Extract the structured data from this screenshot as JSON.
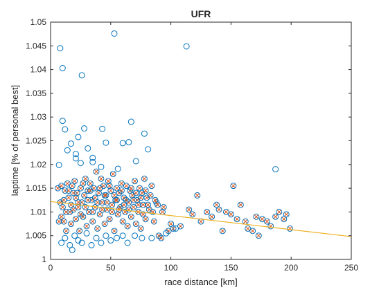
{
  "chart_data": {
    "type": "scatter",
    "title": "UFR",
    "xlabel": "race distance [km]",
    "ylabel": "laptime [% of personal best]",
    "xlim": [
      0,
      250
    ],
    "ylim": [
      1,
      1.05
    ],
    "xticks": [
      0,
      50,
      100,
      150,
      200,
      250
    ],
    "yticks": [
      1,
      1.005,
      1.01,
      1.015,
      1.02,
      1.025,
      1.03,
      1.035,
      1.04,
      1.045,
      1.05
    ],
    "xtick_labels": [
      "0",
      "50",
      "100",
      "150",
      "200",
      "250"
    ],
    "ytick_labels": [
      "1",
      "1.005",
      "1.01",
      "1.015",
      "1.02",
      "1.025",
      "1.03",
      "1.035",
      "1.04",
      "1.045",
      "1.05"
    ],
    "grid": false,
    "legend": "none",
    "colors": {
      "circle": "#0072BD",
      "cross": "#D95319",
      "fit": "#EDB120",
      "axis": "#262626"
    },
    "series": [
      {
        "marker": "circle-only",
        "points": [
          [
            8,
            1.0445
          ],
          [
            10,
            1.0403
          ],
          [
            26,
            1.0388
          ],
          [
            53,
            1.0476
          ],
          [
            113,
            1.0449
          ],
          [
            10,
            1.0292
          ],
          [
            12,
            1.0274
          ],
          [
            28,
            1.0276
          ],
          [
            43,
            1.0275
          ],
          [
            67,
            1.029
          ],
          [
            17,
            1.0244
          ],
          [
            23,
            1.0258
          ],
          [
            31,
            1.0234
          ],
          [
            60,
            1.0245
          ],
          [
            65,
            1.0247
          ],
          [
            78,
            1.0265
          ],
          [
            14,
            1.023
          ],
          [
            21,
            1.0222
          ],
          [
            21,
            1.0213
          ],
          [
            35,
            1.0214
          ],
          [
            46,
            1.0246
          ],
          [
            71,
            1.0207
          ],
          [
            81,
            1.0232
          ],
          [
            7,
            1.0199
          ],
          [
            25,
            1.0203
          ],
          [
            35,
            1.0205
          ],
          [
            187,
            1.019
          ],
          [
            42,
            1.0195
          ],
          [
            56,
            1.0191
          ]
        ]
      },
      {
        "marker": "circle-with-cross",
        "points": [
          [
            6,
            1.015
          ],
          [
            8,
            1.012
          ],
          [
            9,
            1.009
          ],
          [
            10,
            1.011
          ],
          [
            11,
            1.008
          ],
          [
            12,
            1.0145
          ],
          [
            13,
            1.006
          ],
          [
            14,
            1.016
          ],
          [
            15,
            1.013
          ],
          [
            16,
            1.01
          ],
          [
            17,
            1.0075
          ],
          [
            18,
            1.0155
          ],
          [
            19,
            1.0105
          ],
          [
            20,
            1.0165
          ],
          [
            21,
            1.0085
          ],
          [
            22,
            1.014
          ],
          [
            23,
            1.011
          ],
          [
            24,
            1.006
          ],
          [
            25,
            1.015
          ],
          [
            26,
            1.012
          ],
          [
            27,
            1.009
          ],
          [
            28,
            1.0135
          ],
          [
            29,
            1.017
          ],
          [
            30,
            1.007
          ],
          [
            31,
            1.0145
          ],
          [
            32,
            1.01
          ],
          [
            33,
            1.016
          ],
          [
            34,
            1.0125
          ],
          [
            35,
            1.008
          ],
          [
            36,
            1.015
          ],
          [
            37,
            1.011
          ],
          [
            38,
            1.0185
          ],
          [
            39,
            1.0065
          ],
          [
            40,
            1.014
          ],
          [
            41,
            1.0095
          ],
          [
            42,
            1.017
          ],
          [
            43,
            1.012
          ],
          [
            44,
            1.0155
          ],
          [
            45,
            1.0075
          ],
          [
            46,
            1.0135
          ],
          [
            47,
            1.0105
          ],
          [
            48,
            1.0165
          ],
          [
            49,
            1.0085
          ],
          [
            50,
            1.0145
          ],
          [
            51,
            1.0115
          ],
          [
            52,
            1.018
          ],
          [
            53,
            1.006
          ],
          [
            54,
            1.0125
          ],
          [
            55,
            1.015
          ],
          [
            56,
            1.0095
          ],
          [
            57,
            1.014
          ],
          [
            58,
            1.011
          ],
          [
            59,
            1.016
          ],
          [
            60,
            1.008
          ],
          [
            61,
            1.013
          ],
          [
            62,
            1.01
          ],
          [
            63,
            1.0155
          ],
          [
            64,
            1.007
          ],
          [
            65,
            1.012
          ],
          [
            66,
            1.0145
          ],
          [
            67,
            1.009
          ],
          [
            68,
            1.0135
          ],
          [
            69,
            1.011
          ],
          [
            70,
            1.0165
          ],
          [
            71,
            1.0075
          ],
          [
            72,
            1.0125
          ],
          [
            73,
            1.01
          ],
          [
            74,
            1.015
          ],
          [
            75,
            1.0065
          ],
          [
            76,
            1.014
          ],
          [
            77,
            1.0115
          ],
          [
            78,
            1.017
          ],
          [
            79,
            1.0085
          ],
          [
            80,
            1.013
          ],
          [
            82,
            1.0105
          ],
          [
            84,
            1.0155
          ],
          [
            86,
            1.008
          ],
          [
            88,
            1.012
          ],
          [
            90,
            1.005
          ],
          [
            92,
            1.0045
          ],
          [
            94,
            1.011
          ],
          [
            98,
            1.006
          ],
          [
            102,
            1.0065
          ],
          [
            108,
            1.007
          ],
          [
            115,
            1.0105
          ],
          [
            118,
            1.0095
          ],
          [
            122,
            1.0135
          ],
          [
            125,
            1.008
          ],
          [
            130,
            1.01
          ],
          [
            134,
            1.009
          ],
          [
            138,
            1.0115
          ],
          [
            140,
            1.0105
          ],
          [
            143,
            1.006
          ],
          [
            146,
            1.01
          ],
          [
            150,
            1.0095
          ],
          [
            152,
            1.0155
          ],
          [
            155,
            1.0085
          ],
          [
            158,
            1.0115
          ],
          [
            162,
            1.008
          ],
          [
            164,
            1.0065
          ],
          [
            168,
            1.006
          ],
          [
            171,
            1.009
          ],
          [
            173,
            1.005
          ],
          [
            176,
            1.0085
          ],
          [
            180,
            1.008
          ],
          [
            183,
            1.007
          ],
          [
            187,
            1.009
          ],
          [
            190,
            1.01
          ],
          [
            194,
            1.0085
          ],
          [
            196,
            1.0095
          ],
          [
            199,
            1.0065
          ],
          [
            7,
            1.008
          ],
          [
            9,
            1.0155
          ],
          [
            11,
            1.0125
          ],
          [
            13,
            1.01
          ],
          [
            15,
            1.0145
          ],
          [
            17,
            1.0115
          ],
          [
            19,
            1.014
          ],
          [
            21,
            1.013
          ],
          [
            23,
            1.012
          ],
          [
            25,
            1.0095
          ],
          [
            27,
            1.016
          ],
          [
            29,
            1.011
          ],
          [
            31,
            1.0125
          ],
          [
            33,
            1.0145
          ],
          [
            35,
            1.01
          ],
          [
            37,
            1.013
          ],
          [
            39,
            1.012
          ],
          [
            41,
            1.015
          ],
          [
            43,
            1.0105
          ],
          [
            45,
            1.0135
          ],
          [
            47,
            1.012
          ],
          [
            49,
            1.0155
          ],
          [
            51,
            1.01
          ],
          [
            53,
            1.0135
          ],
          [
            55,
            1.0125
          ],
          [
            57,
            1.0105
          ],
          [
            59,
            1.0145
          ],
          [
            61,
            1.0115
          ],
          [
            63,
            1.0125
          ],
          [
            65,
            1.0105
          ],
          [
            67,
            1.015
          ],
          [
            69,
            1.0125
          ],
          [
            71,
            1.014
          ],
          [
            73,
            1.0115
          ],
          [
            75,
            1.013
          ],
          [
            77,
            1.0095
          ],
          [
            79,
            1.0145
          ],
          [
            81,
            1.0115
          ],
          [
            83,
            1.0135
          ],
          [
            85,
            1.01
          ],
          [
            87,
            1.0125
          ],
          [
            89,
            1.0115
          ],
          [
            93,
            1.01
          ],
          [
            100,
            1.0075
          ]
        ]
      },
      {
        "marker": "circle-only",
        "points": [
          [
            9,
            1.0035
          ],
          [
            12,
            1.0045
          ],
          [
            16,
            1.003
          ],
          [
            18,
            1.002
          ],
          [
            20,
            1.005
          ],
          [
            23,
            1.004
          ],
          [
            26,
            1.0035
          ],
          [
            30,
            1.0055
          ],
          [
            34,
            1.003
          ],
          [
            38,
            1.0045
          ],
          [
            42,
            1.0035
          ],
          [
            46,
            1.005
          ],
          [
            50,
            1.004
          ],
          [
            55,
            1.0045
          ],
          [
            60,
            1.005
          ],
          [
            64,
            1.0035
          ],
          [
            70,
            1.005
          ],
          [
            76,
            1.0045
          ],
          [
            84,
            1.0045
          ],
          [
            96,
            1.0055
          ],
          [
            104,
            1.0065
          ]
        ]
      }
    ],
    "trendline": {
      "x": [
        0,
        250
      ],
      "y": [
        1.0122,
        1.0048
      ]
    }
  }
}
